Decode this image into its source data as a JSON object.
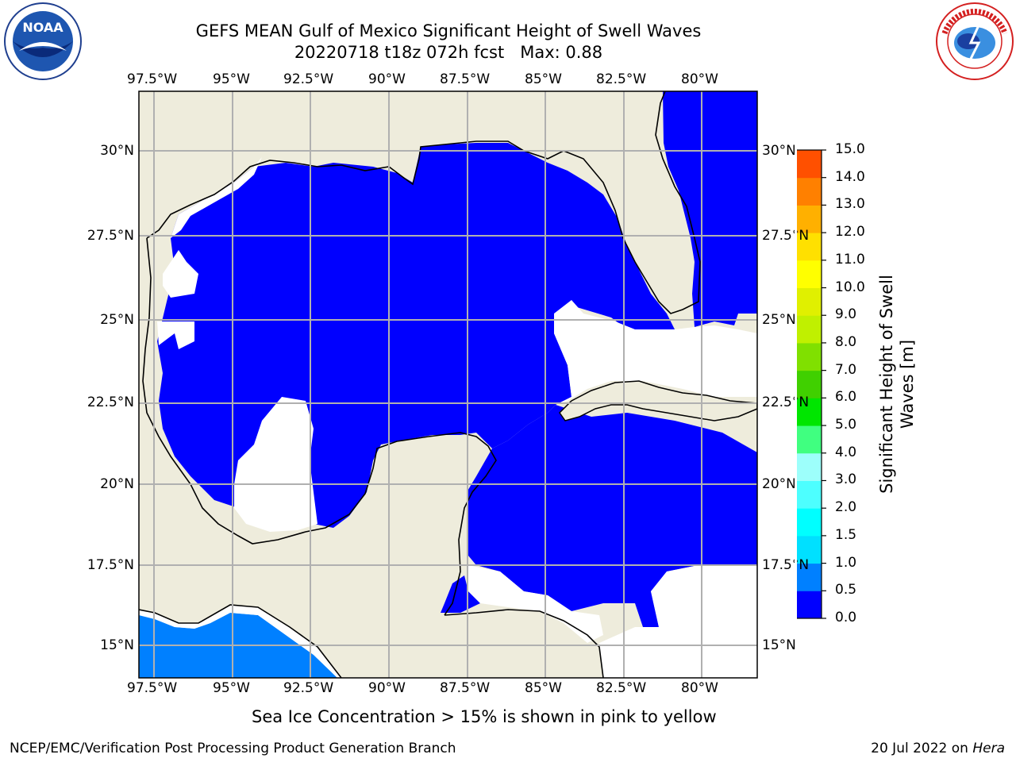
{
  "header": {
    "title_line1": "GEFS MEAN Gulf of Mexico Significant Height of Swell Waves",
    "title_line2": "20220718 t18z 072h fcst   Max: 0.88"
  },
  "logos": {
    "left": {
      "name": "noaa-logo",
      "text": "NOAA"
    },
    "right": {
      "name": "nws-logo",
      "text": "NATIONAL WEATHER SERVICE"
    }
  },
  "map": {
    "lon_labels": [
      "97.5°W",
      "95°W",
      "92.5°W",
      "90°W",
      "87.5°W",
      "85°W",
      "82.5°W",
      "80°W"
    ],
    "lat_labels": [
      "30°N",
      "27.5°N",
      "25°N",
      "22.5°N",
      "20°N",
      "17.5°N",
      "15°N"
    ],
    "lon_range": [
      -98,
      -78.2
    ],
    "lat_range": [
      14,
      31.6
    ],
    "colors": {
      "land": "#eeecdc",
      "ocean_zero": "#0000ff",
      "ocean_low": "#0080ff",
      "nodata": "#ffffff",
      "grid": "#b0b0b0"
    }
  },
  "colorbar": {
    "label": "Significant Height of Swell Waves [m]",
    "ticks": [
      "15.0",
      "14.0",
      "13.0",
      "12.0",
      "11.0",
      "10.0",
      "9.0",
      "8.0",
      "7.0",
      "6.0",
      "5.0",
      "4.0",
      "3.0",
      "2.0",
      "1.5",
      "1.0",
      "0.5",
      "0.0"
    ],
    "colors_bottom_to_top": [
      "#0000ff",
      "#0080ff",
      "#00e0ff",
      "#00ffff",
      "#4dffff",
      "#9dfffb",
      "#40ff80",
      "#00e600",
      "#40d000",
      "#80e000",
      "#c0f000",
      "#e0f000",
      "#ffff00",
      "#ffe000",
      "#ffb000",
      "#ff8000",
      "#ff5000",
      "#ff2000",
      "#ff0000"
    ]
  },
  "caption": "Sea Ice Concentration > 15% is shown in pink to yellow",
  "footer": {
    "left": "NCEP/EMC/Verification Post Processing Product Generation Branch",
    "right_date": "20 Jul 2022 on ",
    "right_host": "Hera"
  }
}
